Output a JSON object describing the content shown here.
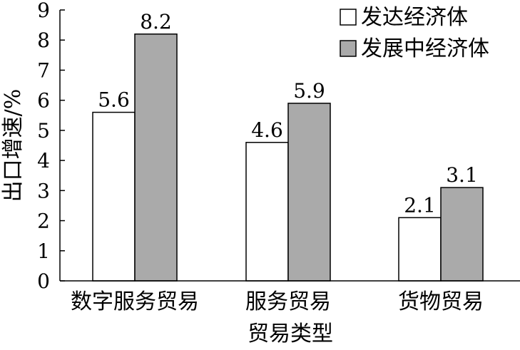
{
  "chart_data": {
    "type": "bar",
    "categories": [
      "数字服务贸易",
      "服务贸易",
      "货物贸易"
    ],
    "series": [
      {
        "name": "发达经济体",
        "values": [
          5.6,
          4.6,
          2.1
        ],
        "color": "#ffffff"
      },
      {
        "name": "发展中经济体",
        "values": [
          8.2,
          5.9,
          3.1
        ],
        "color": "#aaaaaa"
      }
    ],
    "data_labels": [
      [
        "5.6",
        "4.6",
        "2.1"
      ],
      [
        "8.2",
        "5.9",
        "3.1"
      ]
    ],
    "title": "",
    "xlabel": "贸易类型",
    "ylabel": "出口增速/%",
    "ylim": [
      0,
      9
    ],
    "yticks": [
      "0",
      "1",
      "2",
      "3",
      "4",
      "5",
      "6",
      "7",
      "8",
      "9"
    ],
    "grid": false,
    "legend": "top-right"
  }
}
